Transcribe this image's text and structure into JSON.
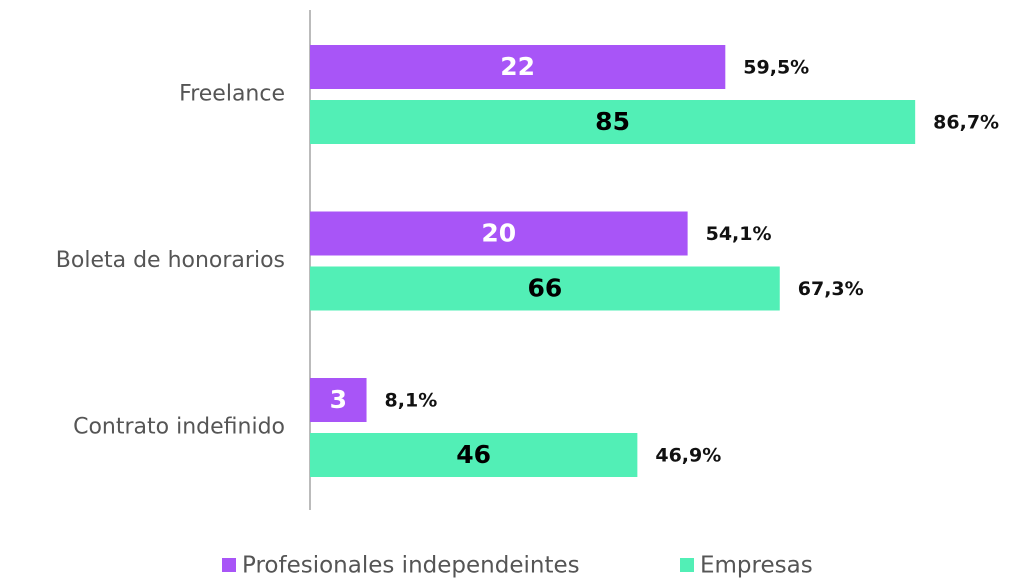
{
  "chart_data": {
    "type": "bar",
    "orientation": "horizontal",
    "categories": [
      "Freelance",
      "Boleta de honorarios",
      "Contrato indefinido"
    ],
    "series": [
      {
        "name": "Profesionales independeintes",
        "color": "#a855f7",
        "count_color": "#ffffff",
        "values": [
          59.5,
          54.1,
          8.1
        ],
        "value_labels": [
          "59,5%",
          "54,1%",
          "8,1%"
        ],
        "counts": [
          22,
          20,
          3
        ]
      },
      {
        "name": "Empresas",
        "color": "#52efb6",
        "count_color": "#000000",
        "values": [
          86.7,
          67.3,
          46.9
        ],
        "value_labels": [
          "86,7%",
          "67,3%",
          "46,9%"
        ],
        "counts": [
          85,
          66,
          46
        ]
      }
    ],
    "legend": "bottom"
  }
}
